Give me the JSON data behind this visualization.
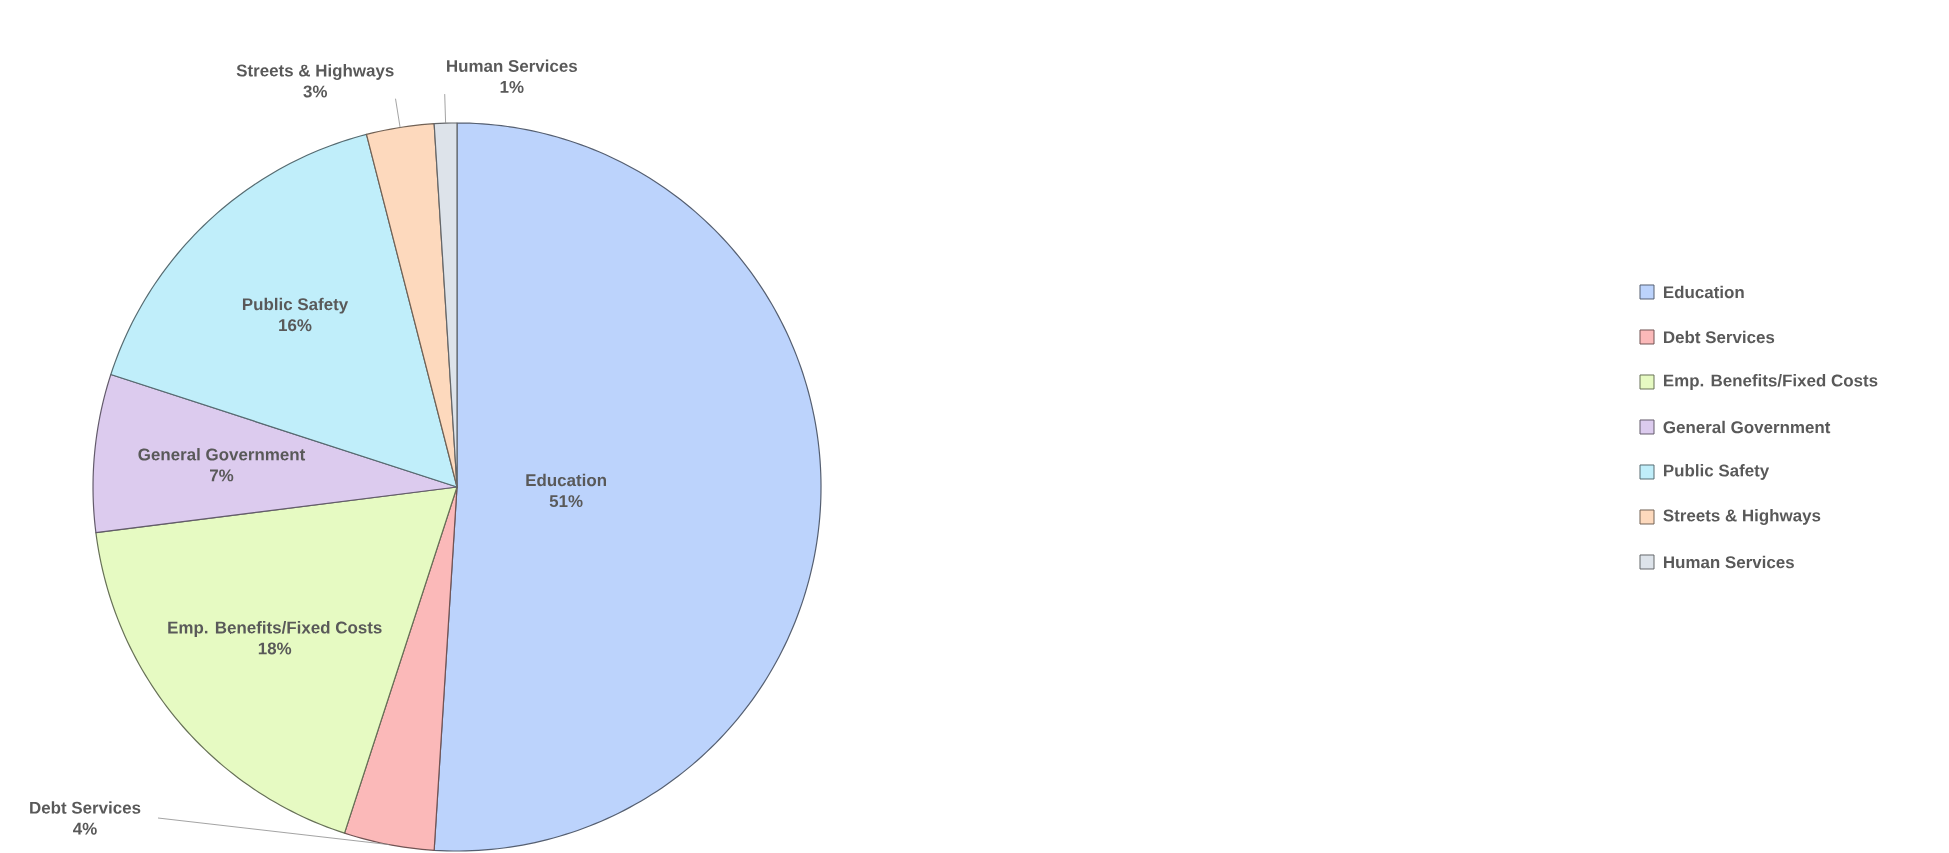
{
  "chart_data": {
    "type": "pie",
    "categories": [
      "Education",
      "Debt Services",
      "Emp. Benefits/Fixed Costs",
      "General Government",
      "Public Safety",
      "Streets & Highways",
      "Human Services"
    ],
    "values": [
      51,
      4,
      18,
      7,
      16,
      3,
      1
    ],
    "value_labels": [
      "51%",
      "4%",
      "18%",
      "7%",
      "16%",
      "3%",
      "1%"
    ],
    "colors": [
      "#bcd3fc",
      "#fbb9b9",
      "#e6fac2",
      "#dccbee",
      "#c0eefa",
      "#fdd9bd",
      "#dde3ea"
    ],
    "legend": "right"
  }
}
